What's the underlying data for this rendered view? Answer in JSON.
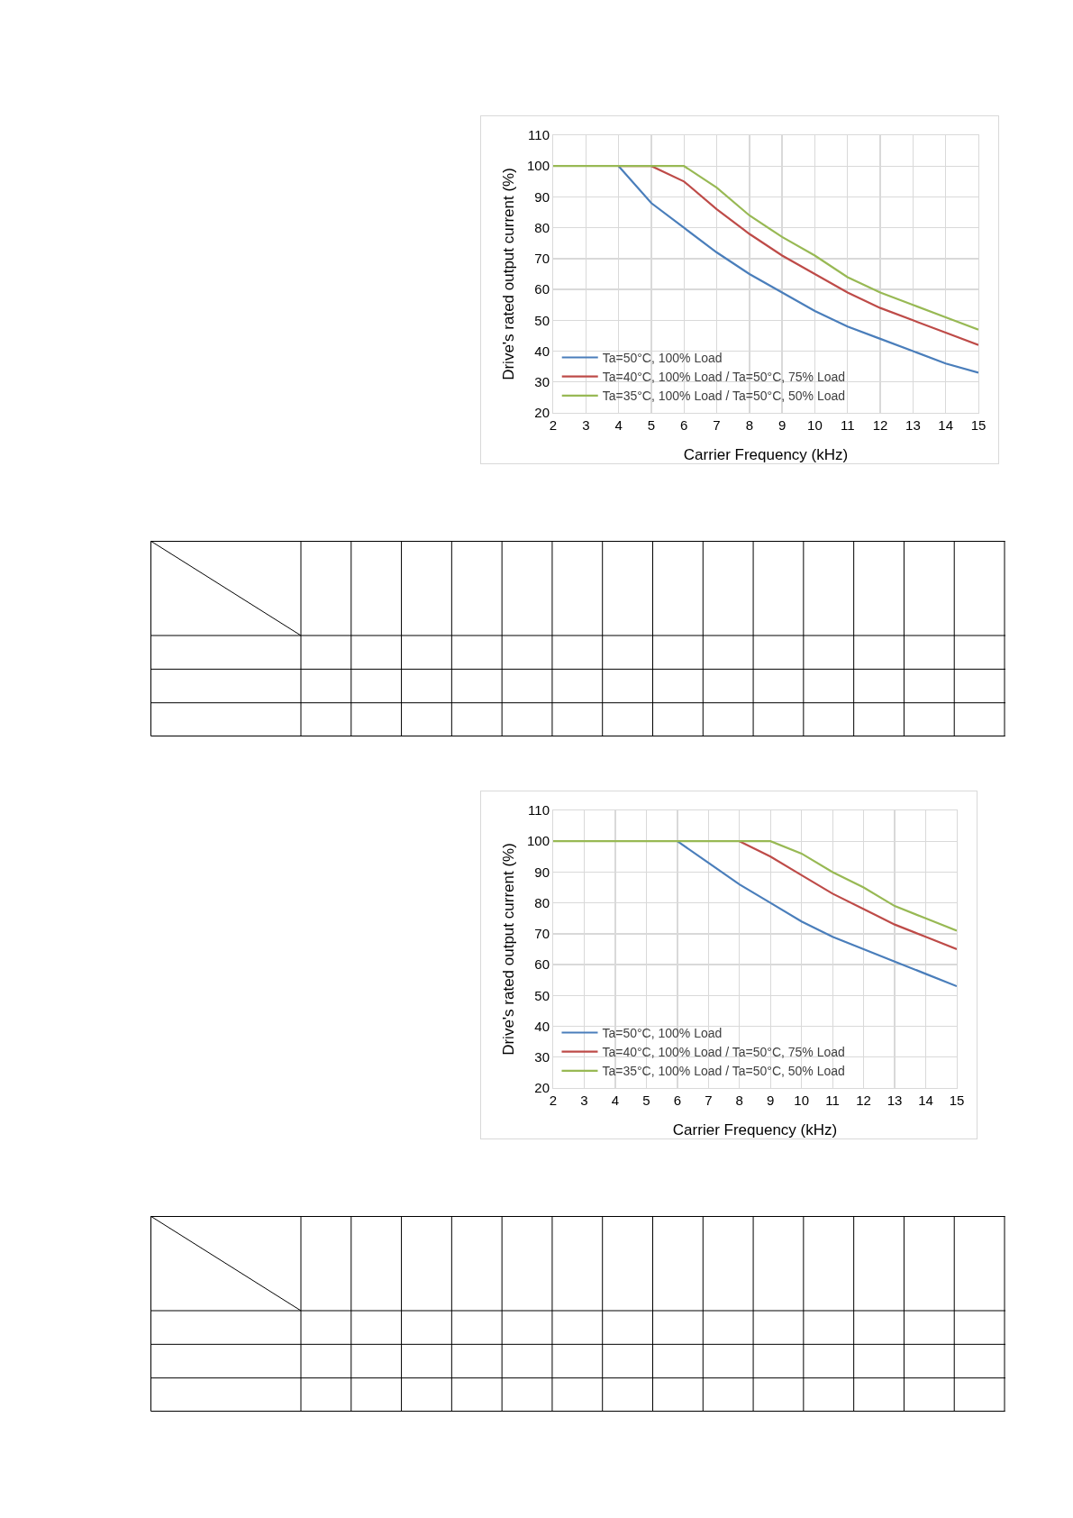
{
  "chart_data": [
    {
      "type": "line",
      "xlabel": "Carrier Frequency (kHz)",
      "ylabel": "Drive's rated output current (%)",
      "x": [
        2,
        3,
        4,
        5,
        6,
        7,
        8,
        9,
        10,
        11,
        12,
        13,
        14,
        15
      ],
      "xlim": [
        2,
        15
      ],
      "xticks": [
        2,
        3,
        4,
        5,
        6,
        7,
        8,
        9,
        10,
        11,
        12,
        13,
        14,
        15
      ],
      "ylim": [
        20,
        110
      ],
      "yticks": [
        20,
        30,
        40,
        50,
        60,
        70,
        80,
        90,
        100,
        110
      ],
      "grid": true,
      "legend": "bottom left",
      "series": [
        {
          "name": "Ta=50°C, 100% Load",
          "color": "#4a7ebb",
          "values": [
            null,
            null,
            100,
            88,
            80,
            72,
            65,
            59,
            53,
            48,
            44,
            40,
            36,
            33
          ]
        },
        {
          "name": "Ta=40°C, 100% Load / Ta=50°C, 75% Load",
          "color": "#be4b48",
          "values": [
            null,
            null,
            100,
            100,
            95,
            86,
            78,
            71,
            65,
            59,
            54,
            50,
            46,
            42
          ]
        },
        {
          "name": "Ta=35°C, 100% Load / Ta=50°C, 50% Load",
          "color": "#98b954",
          "values": [
            100,
            100,
            100,
            100,
            100,
            93,
            84,
            77,
            71,
            64,
            59,
            55,
            51,
            47
          ]
        }
      ]
    },
    {
      "type": "line",
      "xlabel": "Carrier Frequency (kHz)",
      "ylabel": "Drive's rated output current (%)",
      "x": [
        2,
        3,
        4,
        5,
        6,
        7,
        8,
        9,
        10,
        11,
        12,
        13,
        14,
        15
      ],
      "xlim": [
        2,
        15
      ],
      "xticks": [
        2,
        3,
        4,
        5,
        6,
        7,
        8,
        9,
        10,
        11,
        12,
        13,
        14,
        15
      ],
      "ylim": [
        20,
        110
      ],
      "yticks": [
        20,
        30,
        40,
        50,
        60,
        70,
        80,
        90,
        100,
        110
      ],
      "grid": true,
      "legend": "bottom left",
      "series": [
        {
          "name": "Ta=50°C, 100% Load",
          "color": "#4a7ebb",
          "values": [
            null,
            null,
            null,
            null,
            100,
            93,
            86,
            80,
            74,
            69,
            65,
            61,
            57,
            53
          ]
        },
        {
          "name": "Ta=40°C, 100% Load / Ta=50°C, 75% Load",
          "color": "#be4b48",
          "values": [
            null,
            null,
            null,
            null,
            null,
            null,
            100,
            95,
            89,
            83,
            78,
            73,
            69,
            65
          ]
        },
        {
          "name": "Ta=35°C, 100% Load / Ta=50°C, 50% Load",
          "color": "#98b954",
          "values": [
            100,
            100,
            100,
            100,
            100,
            100,
            100,
            100,
            96,
            90,
            85,
            79,
            75,
            71
          ]
        }
      ]
    }
  ]
}
